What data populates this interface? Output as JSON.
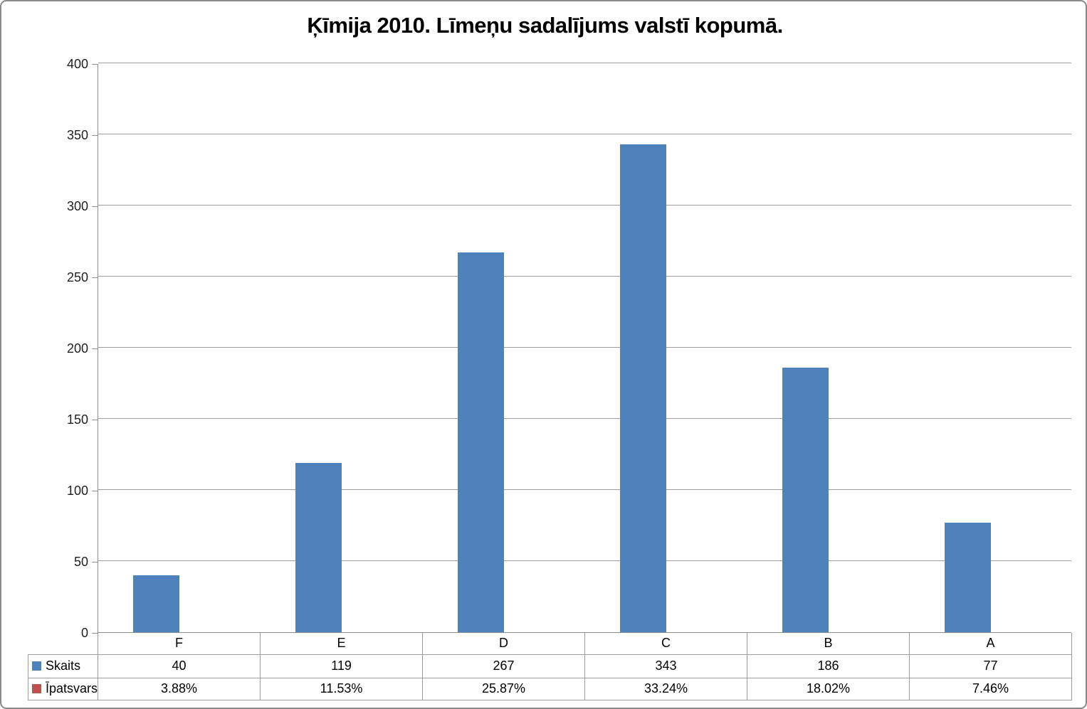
{
  "window": {
    "background": "#ffffff",
    "border_color": "#8a8a8a"
  },
  "chart_data": {
    "type": "bar",
    "title": "Ķīmija 2010. Līmeņu sadalījums valstī kopumā.",
    "categories": [
      "F",
      "E",
      "D",
      "C",
      "B",
      "A"
    ],
    "series": [
      {
        "name": "Skaits",
        "color": "#4F81BD",
        "values": [
          40,
          119,
          267,
          343,
          186,
          77
        ],
        "display": [
          "40",
          "119",
          "267",
          "343",
          "186",
          "77"
        ]
      },
      {
        "name": "Īpatsvars",
        "color": "#C0504D",
        "values": [
          0.0388,
          0.1153,
          0.2587,
          0.3324,
          0.1802,
          0.0746
        ],
        "display": [
          "3.88%",
          "11.53%",
          "25.87%",
          "33.24%",
          "18.02%",
          "7.46%"
        ]
      }
    ],
    "xlabel": "",
    "ylabel": "",
    "ylim": [
      0,
      400
    ],
    "yticks": [
      0,
      50,
      100,
      150,
      200,
      250,
      300,
      350,
      400
    ],
    "grid": true,
    "legend_position": "table-left",
    "gap_width_percent": 150,
    "colors": {
      "gridline": "#9d9d9d",
      "axis": "#8e8e8e",
      "table_border": "#9d9d9d",
      "text": "#000000"
    }
  }
}
